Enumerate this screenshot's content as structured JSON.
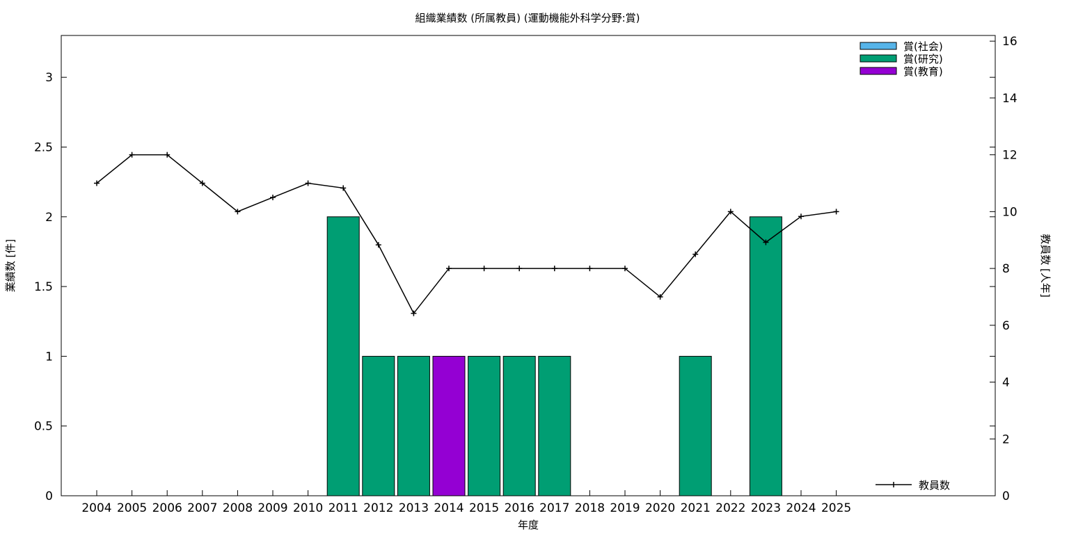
{
  "chart_data": {
    "type": "bar",
    "title": "組織業績数 (所属教員) (運動機能外科学分野:賞)",
    "xlabel": "年度",
    "ylabel": "業績数 [件]",
    "y2label": "教員数 [人年]",
    "categories": [
      "2004",
      "2005",
      "2006",
      "2007",
      "2008",
      "2009",
      "2010",
      "2011",
      "2012",
      "2013",
      "2014",
      "2015",
      "2016",
      "2017",
      "2018",
      "2019",
      "2020",
      "2021",
      "2022",
      "2023",
      "2024",
      "2025"
    ],
    "ylim": [
      0,
      3.3
    ],
    "y_ticks": [
      "0",
      "0.5",
      "1",
      "1.5",
      "2",
      "2.5",
      "3"
    ],
    "y2lim": [
      0,
      16.2
    ],
    "y2_ticks": [
      "0",
      "2",
      "4",
      "6",
      "8",
      "10",
      "12",
      "14",
      "16"
    ],
    "series": [
      {
        "name": "賞(社会)",
        "kind": "bar",
        "color": "#56b4e9",
        "values": [
          0,
          0,
          0,
          0,
          0,
          0,
          0,
          0,
          0,
          0,
          0,
          0,
          0,
          0,
          0,
          0,
          0,
          0,
          0,
          0,
          0,
          0
        ]
      },
      {
        "name": "賞(研究)",
        "kind": "bar",
        "color": "#009e73",
        "values": [
          0,
          0,
          0,
          0,
          0,
          0,
          0,
          2,
          1,
          1,
          0,
          1,
          1,
          1,
          0,
          0,
          0,
          1,
          0,
          2,
          0,
          0
        ]
      },
      {
        "name": "賞(教育)",
        "kind": "bar",
        "color": "#9400d3",
        "values": [
          0,
          0,
          0,
          0,
          0,
          0,
          0,
          0,
          0,
          0,
          1,
          0,
          0,
          0,
          0,
          0,
          0,
          0,
          0,
          0,
          0,
          0
        ]
      },
      {
        "name": "教員数",
        "kind": "line",
        "axis": "y2",
        "color": "#000000",
        "values": [
          11,
          12,
          12,
          11,
          10,
          10.5,
          11,
          10.83,
          8.83,
          6.42,
          8,
          8,
          8,
          8,
          8,
          8,
          7,
          8.5,
          10,
          8.92,
          9.83,
          10
        ]
      }
    ],
    "legend_top": "top-right",
    "legend_bottom": "bottom-right",
    "grid": false
  }
}
